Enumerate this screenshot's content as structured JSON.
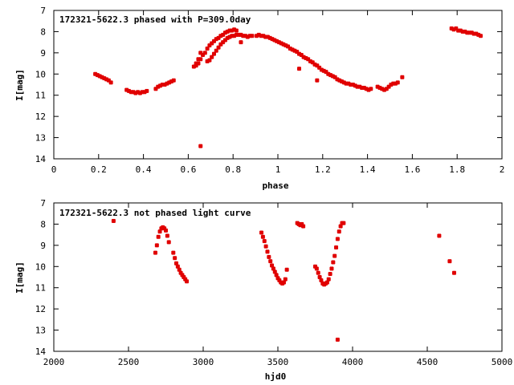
{
  "chart_data": [
    {
      "type": "scatter",
      "title": "172321-5622.3 phased with P=309.0day",
      "xlabel": "phase",
      "ylabel": "I[mag]",
      "xlim": [
        0,
        2
      ],
      "ylim": [
        14,
        7
      ],
      "y_inverted": true,
      "xticks": [
        "0",
        "0.2",
        "0.4",
        "0.6",
        "0.8",
        "1",
        "1.2",
        "1.4",
        "1.6",
        "1.8",
        "2"
      ],
      "yticks": [
        "7",
        "8",
        "9",
        "10",
        "11",
        "12",
        "13",
        "14"
      ],
      "marker_color": "#e00000",
      "series": [
        {
          "points": [
            [
              0.185,
              10.0
            ],
            [
              0.195,
              10.05
            ],
            [
              0.205,
              10.1
            ],
            [
              0.215,
              10.15
            ],
            [
              0.225,
              10.2
            ],
            [
              0.235,
              10.25
            ],
            [
              0.245,
              10.3
            ],
            [
              0.255,
              10.4
            ],
            [
              0.325,
              10.75
            ],
            [
              0.335,
              10.8
            ],
            [
              0.345,
              10.85
            ],
            [
              0.355,
              10.85
            ],
            [
              0.365,
              10.9
            ],
            [
              0.375,
              10.85
            ],
            [
              0.385,
              10.9
            ],
            [
              0.395,
              10.85
            ],
            [
              0.405,
              10.85
            ],
            [
              0.415,
              10.8
            ],
            [
              0.455,
              10.7
            ],
            [
              0.465,
              10.6
            ],
            [
              0.475,
              10.55
            ],
            [
              0.485,
              10.5
            ],
            [
              0.495,
              10.5
            ],
            [
              0.505,
              10.45
            ],
            [
              0.515,
              10.4
            ],
            [
              0.525,
              10.35
            ],
            [
              0.535,
              10.3
            ],
            [
              0.625,
              9.65
            ],
            [
              0.635,
              9.6
            ],
            [
              0.645,
              9.5
            ],
            [
              0.655,
              9.3
            ],
            [
              0.665,
              9.1
            ],
            [
              0.675,
              9.0
            ],
            [
              0.685,
              8.8
            ],
            [
              0.695,
              8.65
            ],
            [
              0.705,
              8.55
            ],
            [
              0.715,
              8.45
            ],
            [
              0.725,
              8.35
            ],
            [
              0.735,
              8.3
            ],
            [
              0.745,
              8.2
            ],
            [
              0.755,
              8.15
            ],
            [
              0.765,
              8.05
            ],
            [
              0.775,
              8.0
            ],
            [
              0.785,
              7.95
            ],
            [
              0.795,
              7.95
            ],
            [
              0.805,
              7.9
            ],
            [
              0.815,
              7.95
            ],
            [
              0.655,
              13.4
            ],
            [
              0.635,
              9.5
            ],
            [
              0.645,
              9.3
            ],
            [
              0.655,
              9.0
            ],
            [
              0.685,
              9.4
            ],
            [
              0.695,
              9.35
            ],
            [
              0.705,
              9.2
            ],
            [
              0.715,
              9.05
            ],
            [
              0.725,
              8.9
            ],
            [
              0.735,
              8.75
            ],
            [
              0.745,
              8.6
            ],
            [
              0.755,
              8.5
            ],
            [
              0.765,
              8.4
            ],
            [
              0.775,
              8.3
            ],
            [
              0.785,
              8.25
            ],
            [
              0.795,
              8.2
            ],
            [
              0.805,
              8.2
            ],
            [
              0.815,
              8.15
            ],
            [
              0.825,
              8.15
            ],
            [
              0.835,
              8.15
            ],
            [
              0.845,
              8.2
            ],
            [
              0.855,
              8.2
            ],
            [
              0.865,
              8.25
            ],
            [
              0.875,
              8.2
            ],
            [
              0.885,
              8.2
            ],
            [
              0.835,
              8.5
            ],
            [
              0.905,
              8.2
            ],
            [
              0.915,
              8.15
            ],
            [
              0.925,
              8.2
            ],
            [
              0.935,
              8.2
            ],
            [
              0.945,
              8.25
            ],
            [
              0.955,
              8.25
            ],
            [
              0.965,
              8.3
            ],
            [
              0.975,
              8.35
            ],
            [
              0.985,
              8.4
            ],
            [
              0.995,
              8.45
            ],
            [
              1.005,
              8.5
            ],
            [
              1.015,
              8.55
            ],
            [
              1.025,
              8.6
            ],
            [
              1.035,
              8.65
            ],
            [
              1.045,
              8.7
            ],
            [
              1.055,
              8.8
            ],
            [
              1.065,
              8.85
            ],
            [
              1.075,
              8.9
            ],
            [
              1.085,
              8.95
            ],
            [
              1.095,
              9.05
            ],
            [
              1.105,
              9.1
            ],
            [
              1.115,
              9.2
            ],
            [
              1.125,
              9.25
            ],
            [
              1.135,
              9.3
            ],
            [
              1.145,
              9.4
            ],
            [
              1.155,
              9.45
            ],
            [
              1.165,
              9.55
            ],
            [
              1.175,
              9.6
            ],
            [
              1.185,
              9.7
            ],
            [
              1.195,
              9.8
            ],
            [
              1.205,
              9.85
            ],
            [
              1.215,
              9.9
            ],
            [
              1.225,
              10.0
            ],
            [
              1.235,
              10.05
            ],
            [
              1.245,
              10.1
            ],
            [
              1.255,
              10.15
            ],
            [
              1.265,
              10.25
            ],
            [
              1.275,
              10.3
            ],
            [
              1.285,
              10.35
            ],
            [
              1.295,
              10.4
            ],
            [
              1.305,
              10.45
            ],
            [
              1.315,
              10.45
            ],
            [
              1.325,
              10.5
            ],
            [
              1.335,
              10.5
            ],
            [
              1.345,
              10.55
            ],
            [
              1.355,
              10.6
            ],
            [
              1.365,
              10.6
            ],
            [
              1.375,
              10.65
            ],
            [
              1.385,
              10.65
            ],
            [
              1.395,
              10.7
            ],
            [
              1.405,
              10.75
            ],
            [
              1.415,
              10.7
            ],
            [
              1.095,
              9.75
            ],
            [
              1.175,
              10.3
            ],
            [
              1.445,
              10.6
            ],
            [
              1.455,
              10.65
            ],
            [
              1.465,
              10.7
            ],
            [
              1.475,
              10.75
            ],
            [
              1.485,
              10.7
            ],
            [
              1.495,
              10.6
            ],
            [
              1.505,
              10.5
            ],
            [
              1.515,
              10.45
            ],
            [
              1.525,
              10.45
            ],
            [
              1.535,
              10.4
            ],
            [
              1.555,
              10.15
            ],
            [
              1.775,
              7.85
            ],
            [
              1.785,
              7.9
            ],
            [
              1.795,
              7.85
            ],
            [
              1.805,
              7.95
            ],
            [
              1.815,
              7.95
            ],
            [
              1.825,
              8.0
            ],
            [
              1.835,
              8.0
            ],
            [
              1.845,
              8.05
            ],
            [
              1.855,
              8.05
            ],
            [
              1.865,
              8.05
            ],
            [
              1.875,
              8.1
            ],
            [
              1.885,
              8.1
            ],
            [
              1.895,
              8.15
            ],
            [
              1.905,
              8.2
            ]
          ]
        }
      ]
    },
    {
      "type": "scatter",
      "title": "172321-5622.3 not phased light curve",
      "xlabel": "hjd0",
      "ylabel": "I[mag]",
      "xlim": [
        2000,
        5000
      ],
      "ylim": [
        14,
        7
      ],
      "y_inverted": true,
      "xticks": [
        "2000",
        "2500",
        "3000",
        "3500",
        "4000",
        "4500",
        "5000"
      ],
      "yticks": [
        "7",
        "8",
        "9",
        "10",
        "11",
        "12",
        "13",
        "14"
      ],
      "marker_color": "#e00000",
      "series": [
        {
          "points": [
            [
              2400,
              7.85
            ],
            [
              2680,
              9.35
            ],
            [
              2690,
              9.0
            ],
            [
              2700,
              8.6
            ],
            [
              2710,
              8.35
            ],
            [
              2720,
              8.2
            ],
            [
              2730,
              8.15
            ],
            [
              2740,
              8.2
            ],
            [
              2750,
              8.3
            ],
            [
              2760,
              8.55
            ],
            [
              2770,
              8.85
            ],
            [
              2800,
              9.35
            ],
            [
              2810,
              9.6
            ],
            [
              2820,
              9.85
            ],
            [
              2830,
              10.0
            ],
            [
              2840,
              10.15
            ],
            [
              2850,
              10.3
            ],
            [
              2860,
              10.4
            ],
            [
              2870,
              10.5
            ],
            [
              2880,
              10.6
            ],
            [
              2890,
              10.7
            ],
            [
              3390,
              8.4
            ],
            [
              3400,
              8.6
            ],
            [
              3410,
              8.8
            ],
            [
              3420,
              9.05
            ],
            [
              3430,
              9.3
            ],
            [
              3440,
              9.55
            ],
            [
              3450,
              9.75
            ],
            [
              3460,
              9.95
            ],
            [
              3470,
              10.1
            ],
            [
              3480,
              10.25
            ],
            [
              3490,
              10.4
            ],
            [
              3500,
              10.55
            ],
            [
              3510,
              10.65
            ],
            [
              3520,
              10.75
            ],
            [
              3530,
              10.8
            ],
            [
              3540,
              10.75
            ],
            [
              3550,
              10.6
            ],
            [
              3560,
              10.15
            ],
            [
              3630,
              7.95
            ],
            [
              3640,
              8.0
            ],
            [
              3650,
              8.05
            ],
            [
              3660,
              8.0
            ],
            [
              3670,
              8.1
            ],
            [
              3750,
              10.0
            ],
            [
              3760,
              10.1
            ],
            [
              3770,
              10.3
            ],
            [
              3780,
              10.5
            ],
            [
              3790,
              10.65
            ],
            [
              3800,
              10.8
            ],
            [
              3810,
              10.85
            ],
            [
              3820,
              10.8
            ],
            [
              3830,
              10.75
            ],
            [
              3840,
              10.6
            ],
            [
              3850,
              10.35
            ],
            [
              3860,
              10.1
            ],
            [
              3870,
              9.8
            ],
            [
              3880,
              9.5
            ],
            [
              3890,
              9.1
            ],
            [
              3900,
              8.7
            ],
            [
              3910,
              8.35
            ],
            [
              3920,
              8.1
            ],
            [
              3930,
              7.95
            ],
            [
              3940,
              7.95
            ],
            [
              3900,
              13.45
            ],
            [
              4580,
              8.55
            ],
            [
              4650,
              9.75
            ],
            [
              4680,
              10.3
            ]
          ]
        }
      ]
    }
  ]
}
